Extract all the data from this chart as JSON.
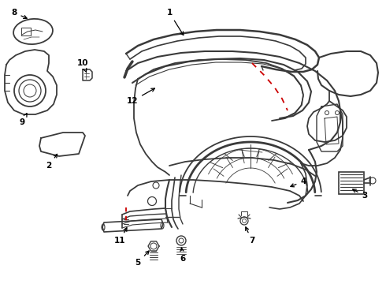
{
  "bg_color": "#ffffff",
  "line_color": "#3a3a3a",
  "red_color": "#cc0000",
  "label_color": "#000000",
  "figsize": [
    4.9,
    3.6
  ],
  "dpi": 100
}
